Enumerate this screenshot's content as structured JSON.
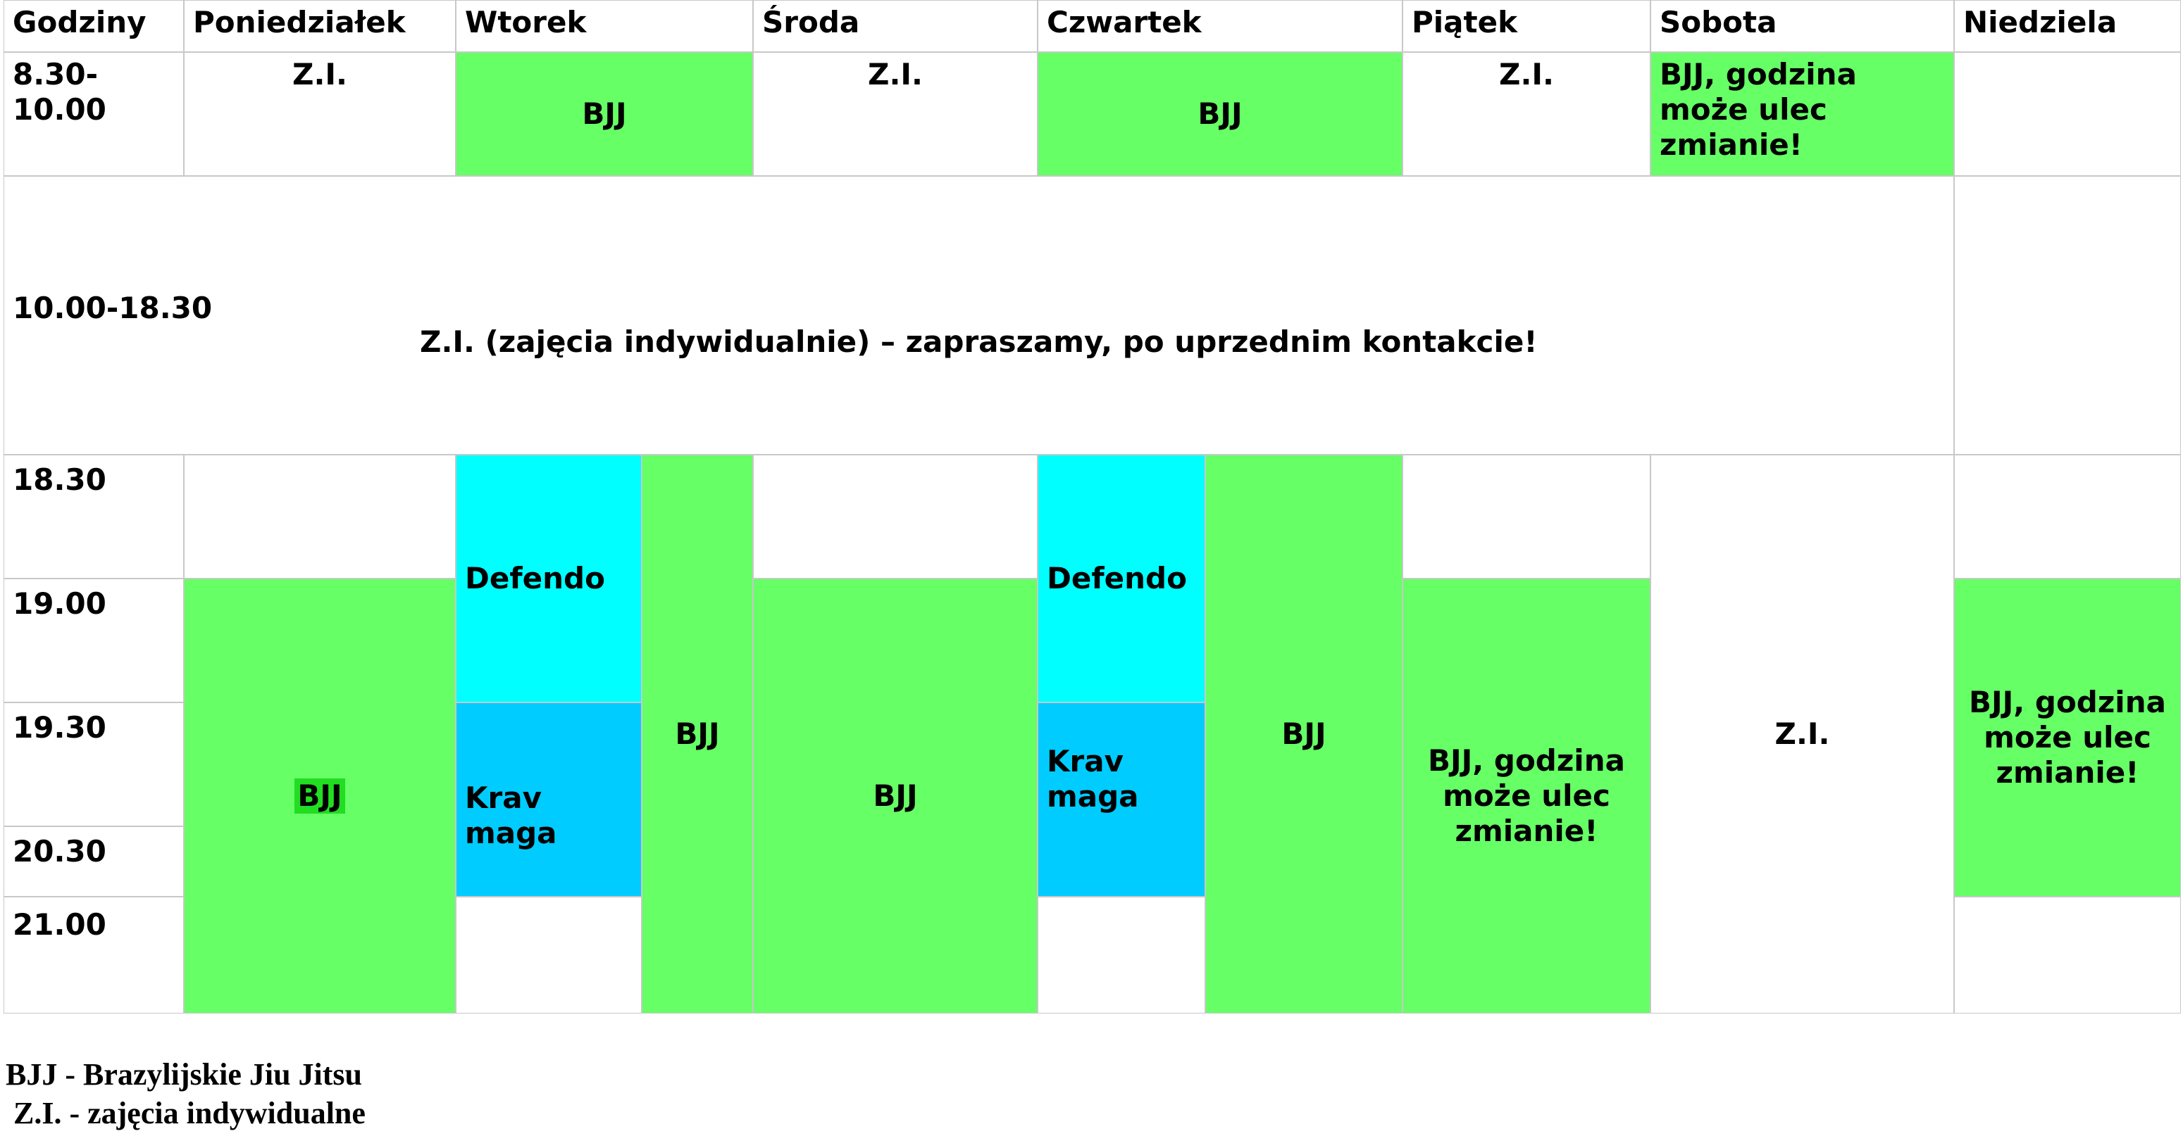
{
  "headers": [
    "Godziny",
    "Poniedziałek",
    "Wtorek",
    "Środa",
    "Czwartek",
    "Piątek",
    "Sobota",
    "Niedziela"
  ],
  "times": {
    "t1": "8.30-\n10.00",
    "t2": "10.00-18.30",
    "t3": "18.30",
    "t4": "19.00",
    "t5": "19.30",
    "t6": "20.30",
    "t7": "21.00"
  },
  "morning": {
    "mon": "Z.I.",
    "tue": "BJJ",
    "wed": "Z.I.",
    "thu": "BJJ",
    "fri": "Z.I.",
    "sat": "BJJ, godzina może ulec zmianie!",
    "sun": ""
  },
  "midday": "Z.I. (zajęcia indywidualnie) – zapraszamy, po uprzednim kontakcie!",
  "evening": {
    "mon_bjj": "BJJ",
    "tue_defendo": "Defendo",
    "tue_krav": "Krav\nmaga",
    "tue_bjj": "BJJ",
    "wed_bjj": "BJJ",
    "thu_defendo": "Defendo",
    "thu_krav": "Krav\nmaga",
    "thu_bjj": "BJJ",
    "fri_bjj": "BJJ, godzina może ulec zmianie!",
    "sat_zi": "Z.I.",
    "sun_bjj": "BJJ, godzina może ulec zmianie!"
  },
  "legend": {
    "line1": "BJJ - Brazylijskie Jiu Jitsu",
    "line2": " Z.I. - zajęcia indywidualne"
  },
  "colors": {
    "bjj_green": "#66ff66",
    "defendo_cyan": "#00ffff",
    "krav_blue": "#00ccff",
    "highlight": "#22dd22"
  }
}
